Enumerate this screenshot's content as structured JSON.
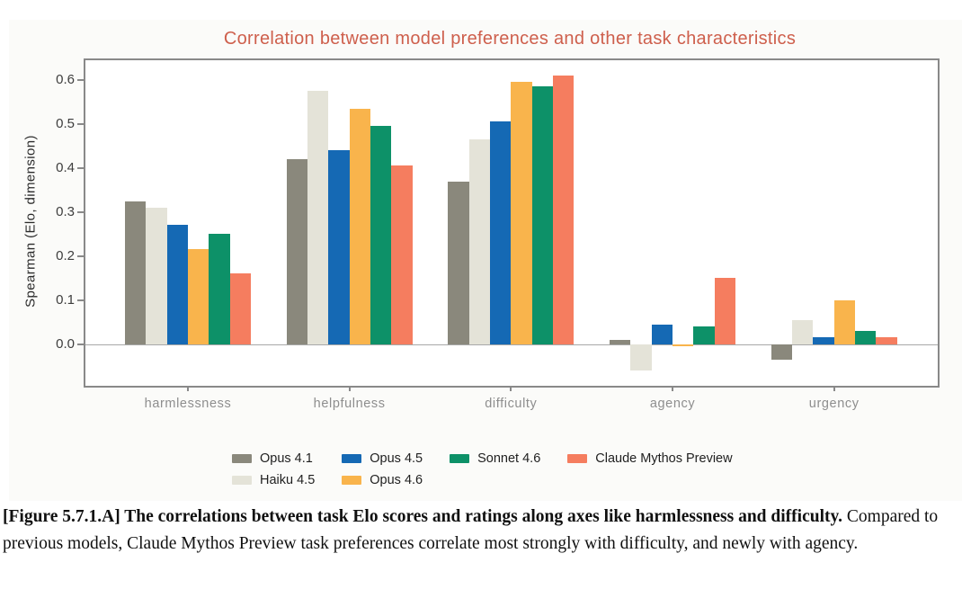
{
  "figure": {
    "caption_bold": "[Figure 5.7.1.A] The correlations between task Elo scores and ratings along axes like harmlessness and difficulty.",
    "caption_regular": " Compared to previous models, Claude Mythos Preview task preferences correlate most strongly with difficulty, and newly with agency."
  },
  "chart_data": {
    "type": "bar",
    "title": "Correlation between model preferences and other task characteristics",
    "title_color": "#ce5f4c",
    "xlabel": "",
    "ylabel": "Spearman (Elo, dimension)",
    "categories": [
      "harmlessness",
      "helpfulness",
      "difficulty",
      "agency",
      "urgency"
    ],
    "series": [
      {
        "name": "Opus 4.1",
        "color": "#8a887c",
        "values": [
          0.325,
          0.42,
          0.37,
          0.01,
          -0.035
        ]
      },
      {
        "name": "Haiku 4.5",
        "color": "#e4e3d8",
        "values": [
          0.31,
          0.575,
          0.465,
          -0.06,
          0.055
        ]
      },
      {
        "name": "Opus 4.5",
        "color": "#1569b4",
        "values": [
          0.27,
          0.44,
          0.505,
          0.045,
          0.015
        ]
      },
      {
        "name": "Opus 4.6",
        "color": "#f9b44c",
        "values": [
          0.215,
          0.535,
          0.595,
          -0.005,
          0.1
        ]
      },
      {
        "name": "Sonnet 4.6",
        "color": "#0d9168",
        "values": [
          0.25,
          0.495,
          0.585,
          0.04,
          0.03
        ]
      },
      {
        "name": "Claude Mythos Preview",
        "color": "#f57d5f",
        "values": [
          0.16,
          0.405,
          0.61,
          0.15,
          0.015
        ]
      }
    ],
    "yticks": [
      0.0,
      0.1,
      0.2,
      0.3,
      0.4,
      0.5,
      0.6
    ],
    "ylim": [
      -0.095,
      0.645
    ],
    "grid": false,
    "legend_position": "bottom",
    "legend_columns": [
      [
        "Opus 4.1",
        "Haiku 4.5"
      ],
      [
        "Opus 4.5",
        "Opus 4.6"
      ],
      [
        "Sonnet 4.6"
      ],
      [
        "Claude Mythos Preview"
      ]
    ]
  }
}
